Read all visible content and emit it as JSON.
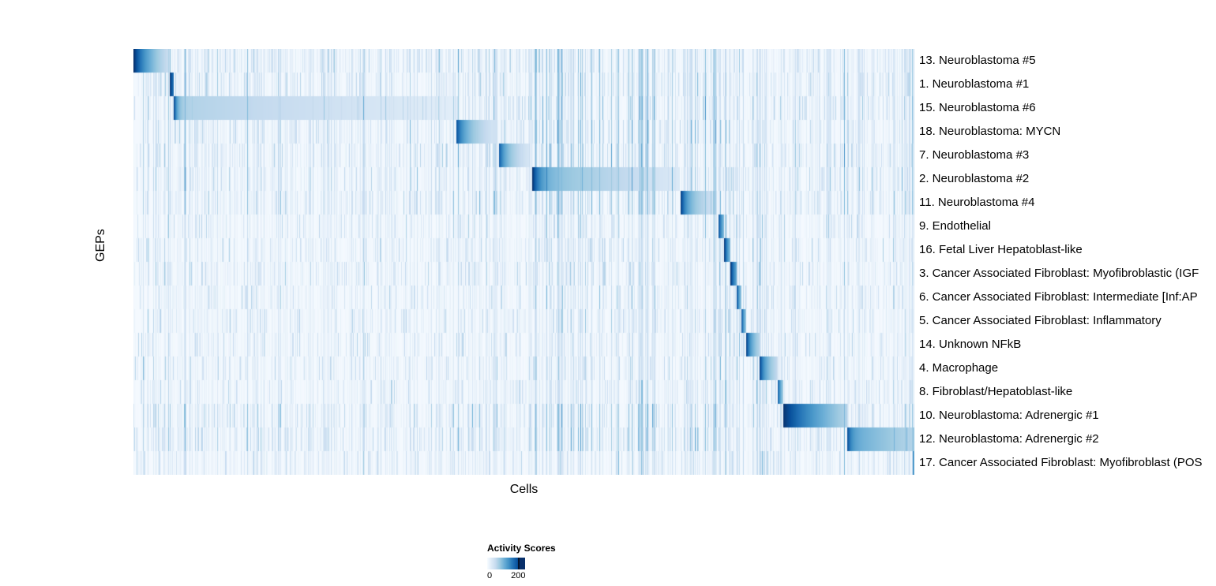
{
  "chart_data": {
    "type": "heatmap",
    "title": "",
    "xlabel": "Cells",
    "ylabel": "GEPs",
    "legend": {
      "title": "Activity Scores",
      "min": 0,
      "max": 200,
      "min_label": "0",
      "max_label": "200",
      "colors": [
        "#f7fbff",
        "#deebf7",
        "#c6dbef",
        "#9ecae1",
        "#6baed6",
        "#4292c6",
        "#2171b5",
        "#08519c",
        "#08306b"
      ]
    },
    "layout": {
      "grid": false,
      "legend_position": "bottom-left",
      "x_ticks": "none (individual cells)"
    },
    "rows": [
      {
        "label": "13. Neuroblastoma #5",
        "start": 0.0,
        "end": 0.046,
        "peak": 205,
        "mid": 120,
        "tail": 40,
        "decay": 0.3
      },
      {
        "label": "1. Neuroblastoma #1",
        "start": 0.046,
        "end": 0.051,
        "peak": 205,
        "mid": 180,
        "tail": 150,
        "decay": 0.5
      },
      {
        "label": "15. Neuroblastoma #6",
        "start": 0.051,
        "end": 0.412,
        "peak": 205,
        "mid": 66,
        "tail": 22,
        "decay": 0.012
      },
      {
        "label": "18. Neuroblastoma: MYCN",
        "start": 0.413,
        "end": 0.466,
        "peak": 185,
        "mid": 100,
        "tail": 30,
        "decay": 0.18
      },
      {
        "label": "7. Neuroblastoma #3",
        "start": 0.468,
        "end": 0.508,
        "peak": 175,
        "mid": 95,
        "tail": 30,
        "decay": 0.18
      },
      {
        "label": "2. Neuroblastoma #2",
        "start": 0.511,
        "end": 0.7,
        "peak": 205,
        "mid": 95,
        "tail": 28,
        "decay": 0.05
      },
      {
        "label": "11. Neuroblastoma #4",
        "start": 0.701,
        "end": 0.747,
        "peak": 200,
        "mid": 100,
        "tail": 35,
        "decay": 0.15
      },
      {
        "label": "9. Endothelial",
        "start": 0.749,
        "end": 0.757,
        "peak": 200,
        "mid": 140,
        "tail": 80,
        "decay": 0.4
      },
      {
        "label": "16. Fetal Liver Hepatoblast-like",
        "start": 0.757,
        "end": 0.765,
        "peak": 200,
        "mid": 140,
        "tail": 80,
        "decay": 0.4
      },
      {
        "label": "3. Cancer Associated Fibroblast: Myofibroblastic (IGF",
        "start": 0.765,
        "end": 0.773,
        "peak": 205,
        "mid": 160,
        "tail": 100,
        "decay": 0.4
      },
      {
        "label": "6. Cancer Associated Fibroblast: Intermediate [Inf:AP",
        "start": 0.773,
        "end": 0.779,
        "peak": 185,
        "mid": 125,
        "tail": 70,
        "decay": 0.4
      },
      {
        "label": "5. Cancer Associated Fibroblast: Inflammatory",
        "start": 0.779,
        "end": 0.785,
        "peak": 185,
        "mid": 125,
        "tail": 70,
        "decay": 0.4
      },
      {
        "label": "14. Unknown NFkB",
        "start": 0.785,
        "end": 0.802,
        "peak": 200,
        "mid": 120,
        "tail": 60,
        "decay": 0.25
      },
      {
        "label": "4. Macrophage",
        "start": 0.802,
        "end": 0.825,
        "peak": 200,
        "mid": 120,
        "tail": 50,
        "decay": 0.2
      },
      {
        "label": "8. Fibroblast/Hepatoblast-like",
        "start": 0.825,
        "end": 0.832,
        "peak": 190,
        "mid": 125,
        "tail": 70,
        "decay": 0.4
      },
      {
        "label": "10. Neuroblastoma: Adrenergic #1",
        "start": 0.832,
        "end": 0.914,
        "peak": 205,
        "mid": 150,
        "tail": 60,
        "decay": 0.35
      },
      {
        "label": "12. Neuroblastoma: Adrenergic #2",
        "start": 0.914,
        "end": 1.0,
        "peak": 195,
        "mid": 110,
        "tail": 60,
        "decay": 0.06
      },
      {
        "label": "17. Cancer Associated Fibroblast: Myofibroblast (POS",
        "start": 0.998,
        "end": 1.0,
        "peak": 180,
        "mid": 140,
        "tail": 100,
        "decay": 0.5
      }
    ]
  }
}
